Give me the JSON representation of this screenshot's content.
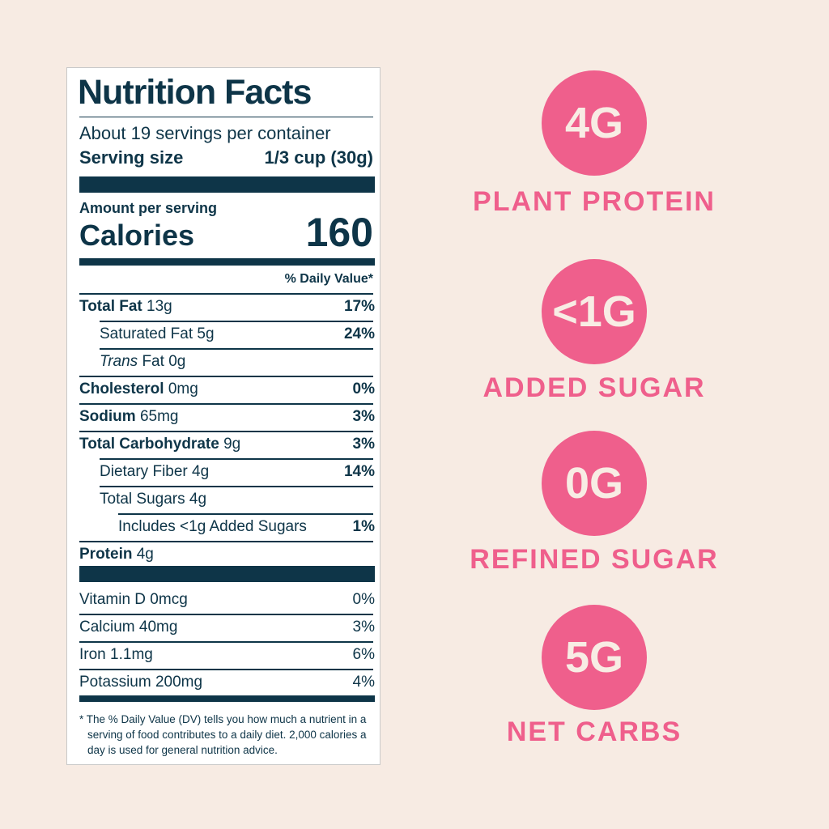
{
  "label": {
    "title": "Nutrition Facts",
    "servings": "About 19 servings per container",
    "serving_size_label": "Serving size",
    "serving_size": "1/3 cup (30g)",
    "amount_per_serving": "Amount per serving",
    "calories_label": "Calories",
    "calories": "160",
    "dv_header": "% Daily Value*",
    "nutrients": [
      {
        "name": "Total Fat",
        "amount": "13g",
        "dv": "17%",
        "bold": true,
        "indent": 0
      },
      {
        "name": "Saturated Fat",
        "amount": "5g",
        "dv": "24%",
        "bold": false,
        "indent": 1
      },
      {
        "italic": "Trans",
        "name": "Fat",
        "amount": "0g",
        "bold": false,
        "indent": 1
      },
      {
        "name": "Cholesterol",
        "amount": "0mg",
        "dv": "0%",
        "bold": true,
        "indent": 0
      },
      {
        "name": "Sodium",
        "amount": "65mg",
        "dv": "3%",
        "bold": true,
        "indent": 0
      },
      {
        "name": "Total Carbohydrate",
        "amount": "9g",
        "dv": "3%",
        "bold": true,
        "indent": 0
      },
      {
        "name": "Dietary Fiber",
        "amount": "4g",
        "dv": "14%",
        "bold": false,
        "indent": 1
      },
      {
        "name": "Total Sugars",
        "amount": "4g",
        "bold": false,
        "indent": 1
      },
      {
        "name": "Includes <1g Added Sugars",
        "dv": "1%",
        "bold": false,
        "indent": 2
      },
      {
        "name": "Protein",
        "amount": "4g",
        "bold": true,
        "indent": 0
      }
    ],
    "vitamins": [
      {
        "name": "Vitamin D",
        "amount": "0mcg",
        "dv": "0%"
      },
      {
        "name": "Calcium",
        "amount": "40mg",
        "dv": "3%"
      },
      {
        "name": "Iron",
        "amount": "1.1mg",
        "dv": "6%"
      },
      {
        "name": "Potassium",
        "amount": "200mg",
        "dv": "4%"
      }
    ],
    "footnote": "* The % Daily Value (DV) tells you how much a nutrient in a serving of food contributes to a daily diet. 2,000 calories a day is used for general nutrition advice."
  },
  "highlights": [
    {
      "value": "4G",
      "label": "PLANT PROTEIN"
    },
    {
      "value": "<1G",
      "label": "ADDED SUGAR"
    },
    {
      "value": "0G",
      "label": "REFINED SUGAR"
    },
    {
      "value": "5G",
      "label": "NET CARBS"
    }
  ]
}
